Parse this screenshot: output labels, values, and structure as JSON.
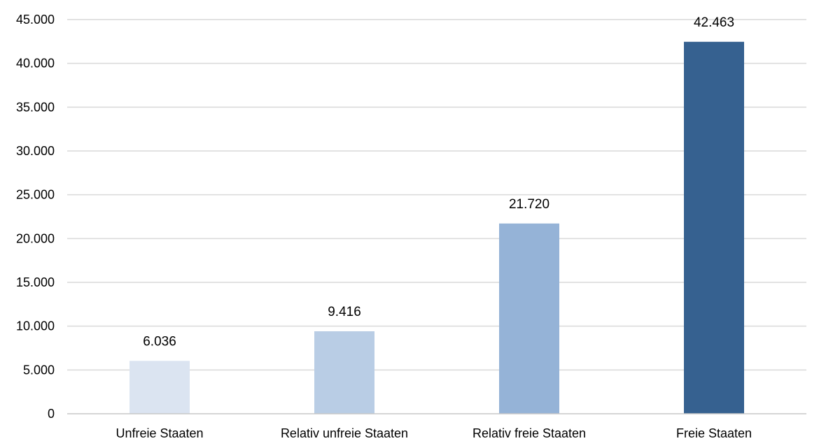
{
  "chart_data": {
    "type": "bar",
    "categories": [
      "Unfreie Staaten",
      "Relativ unfreie Staaten",
      "Relativ freie Staaten",
      "Freie Staaten"
    ],
    "values": [
      6036,
      9416,
      21720,
      42463
    ],
    "data_labels": [
      "6.036",
      "9.416",
      "21.720",
      "42.463"
    ],
    "bar_colors": [
      "#dbe4f1",
      "#b9cde5",
      "#95b3d7",
      "#366190"
    ],
    "ylim": [
      0,
      45000
    ],
    "y_ticks": [
      0,
      5000,
      10000,
      15000,
      20000,
      25000,
      30000,
      35000,
      40000,
      45000
    ],
    "y_tick_labels": [
      "0",
      "5.000",
      "10.000",
      "15.000",
      "20.000",
      "25.000",
      "30.000",
      "35.000",
      "40.000",
      "45.000"
    ],
    "title": "",
    "xlabel": "",
    "ylabel": "",
    "grid": true,
    "legend": "none"
  }
}
